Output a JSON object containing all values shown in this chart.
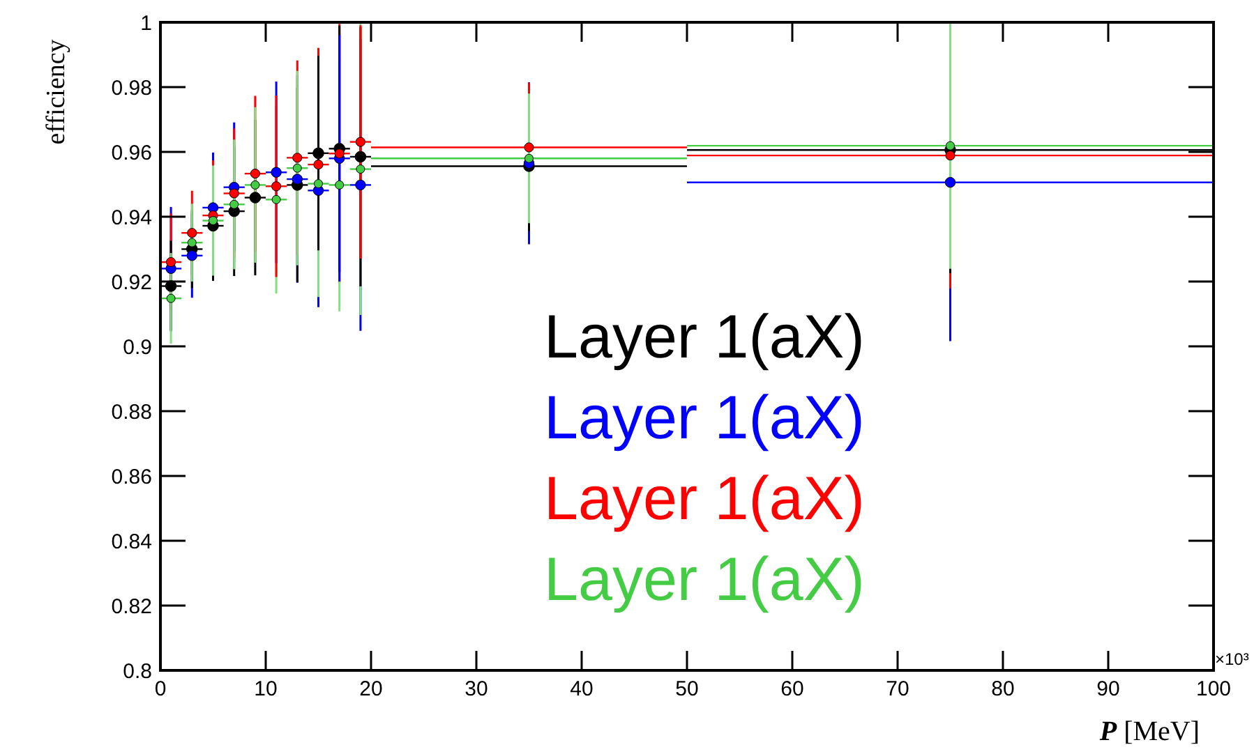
{
  "chart_data": {
    "type": "scatter",
    "xlabel": "P [MeV]",
    "ylabel": "efficiency",
    "x": [
      1,
      3,
      5,
      7,
      9,
      11,
      13,
      15,
      17,
      19,
      35,
      75
    ],
    "series": [
      {
        "name": "Layer 1(aX)",
        "color": "#000000",
        "values": [
          0.9186,
          0.93,
          0.9372,
          0.9417,
          0.9459,
          null,
          0.9498,
          0.9596,
          0.961,
          0.9585,
          0.9556,
          0.9606
        ],
        "errors": [
          0.014,
          0.012,
          0.017,
          0.02,
          0.024,
          null,
          0.03,
          0.03,
          0.038,
          0.04,
          0.02,
          0.038
        ],
        "xerrors": [
          1,
          1,
          1,
          1,
          1,
          null,
          1,
          1,
          1,
          1,
          15,
          25
        ]
      },
      {
        "name": "Layer 1(aX)",
        "color": "#0000ff",
        "values": [
          0.924,
          0.928,
          0.9428,
          0.9491,
          null,
          0.9537,
          0.9516,
          0.9481,
          0.958,
          0.9498,
          0.9565,
          0.9506
        ],
        "errors": [
          0.019,
          0.013,
          0.017,
          0.02,
          null,
          0.028,
          0.032,
          0.036,
          0.038,
          0.045,
          0.025,
          0.049
        ],
        "xerrors": [
          1,
          1,
          1,
          1,
          null,
          1,
          1,
          1,
          1,
          1,
          null,
          25
        ]
      },
      {
        "name": "Layer 1(aX)",
        "color": "#ff0000",
        "values": [
          0.926,
          0.935,
          0.9404,
          0.9472,
          0.9533,
          0.9494,
          0.9582,
          0.9561,
          0.9595,
          0.9631,
          0.9614,
          0.9589
        ],
        "errors": [
          0.015,
          0.013,
          0.017,
          0.02,
          0.024,
          0.028,
          0.03,
          0.036,
          0.04,
          0.036,
          0.02,
          0.041
        ],
        "xerrors": [
          1,
          1,
          1,
          1,
          1,
          1,
          1,
          1,
          1,
          1,
          15,
          25
        ]
      },
      {
        "name": "Layer 1(aX)",
        "color": "#44cc44",
        "values": [
          0.9148,
          0.932,
          0.9388,
          0.9438,
          0.9498,
          0.9453,
          0.955,
          0.9502,
          0.9498,
          0.9547,
          0.958,
          0.9619
        ],
        "errors": [
          0.014,
          0.012,
          0.017,
          0.02,
          0.024,
          0.029,
          0.03,
          0.035,
          0.039,
          0.045,
          0.02,
          0.038
        ],
        "xerrors": [
          1,
          1,
          1,
          1,
          1,
          1,
          1,
          1,
          1,
          1,
          15,
          25
        ]
      }
    ],
    "xlim": [
      0,
      100
    ],
    "xticks": [
      0,
      10,
      20,
      30,
      40,
      50,
      60,
      70,
      80,
      90,
      100
    ],
    "ylim": [
      0.8,
      1
    ],
    "yticks": [
      0.8,
      0.82,
      0.84,
      0.86,
      0.88,
      0.9,
      0.92,
      0.94,
      0.96,
      0.98,
      1
    ],
    "annotations": [
      "×10³"
    ],
    "marker": "circle",
    "legend": "bottom right",
    "grid": false
  }
}
